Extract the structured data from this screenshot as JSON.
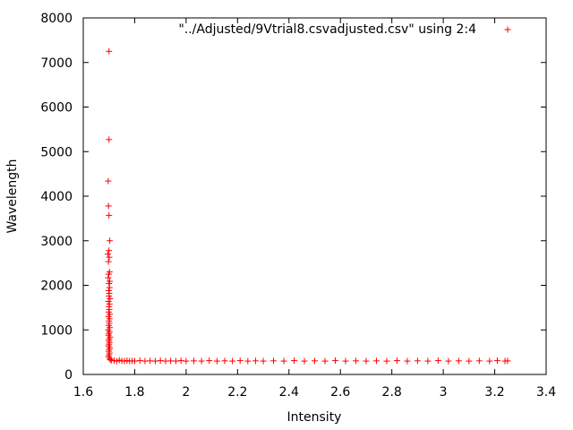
{
  "chart_data": {
    "type": "scatter",
    "xlabel": "Intensity",
    "ylabel": "Wavelength",
    "xlim": [
      1.6,
      3.4
    ],
    "ylim": [
      0,
      8000
    ],
    "x_ticks": [
      "1.6",
      "1.8",
      "2",
      "2.2",
      "2.4",
      "2.6",
      "2.8",
      "3",
      "3.2",
      "3.4"
    ],
    "y_ticks": [
      "0",
      "1000",
      "2000",
      "3000",
      "4000",
      "5000",
      "6000",
      "7000",
      "8000"
    ],
    "grid": false,
    "legend": "top-right",
    "marker": "plus",
    "series": [
      {
        "name": "\"../Adjusted/9Vtrial8.csvadjusted.csv\" using 2:4",
        "color": "#ff0000",
        "points": [
          [
            1.7,
            7250
          ],
          [
            1.7,
            5270
          ],
          [
            1.697,
            4340
          ],
          [
            1.698,
            3780
          ],
          [
            1.7,
            3570
          ],
          [
            1.703,
            3000
          ],
          [
            1.7,
            2780
          ],
          [
            1.696,
            2700
          ],
          [
            1.701,
            2630
          ],
          [
            1.698,
            2530
          ],
          [
            1.702,
            2300
          ],
          [
            1.699,
            2250
          ],
          [
            1.697,
            2170
          ],
          [
            1.703,
            2090
          ],
          [
            1.7,
            2040
          ],
          [
            1.702,
            1950
          ],
          [
            1.699,
            1880
          ],
          [
            1.701,
            1820
          ],
          [
            1.7,
            1760
          ],
          [
            1.704,
            1700
          ],
          [
            1.698,
            1640
          ],
          [
            1.702,
            1580
          ],
          [
            1.7,
            1520
          ],
          [
            1.701,
            1460
          ],
          [
            1.699,
            1400
          ],
          [
            1.703,
            1350
          ],
          [
            1.698,
            1300
          ],
          [
            1.702,
            1250
          ],
          [
            1.7,
            1200
          ],
          [
            1.701,
            1150
          ],
          [
            1.699,
            1100
          ],
          [
            1.703,
            1050
          ],
          [
            1.697,
            1000
          ],
          [
            1.702,
            960
          ],
          [
            1.7,
            920
          ],
          [
            1.698,
            880
          ],
          [
            1.704,
            840
          ],
          [
            1.701,
            800
          ],
          [
            1.699,
            760
          ],
          [
            1.702,
            720
          ],
          [
            1.7,
            680
          ],
          [
            1.698,
            640
          ],
          [
            1.703,
            600
          ],
          [
            1.701,
            560
          ],
          [
            1.699,
            520
          ],
          [
            1.702,
            480
          ],
          [
            1.7,
            440
          ],
          [
            1.698,
            400
          ],
          [
            1.703,
            360
          ],
          [
            1.705,
            330
          ],
          [
            1.71,
            320
          ],
          [
            1.72,
            310
          ],
          [
            1.73,
            300
          ],
          [
            1.74,
            320
          ],
          [
            1.75,
            305
          ],
          [
            1.76,
            300
          ],
          [
            1.77,
            310
          ],
          [
            1.78,
            300
          ],
          [
            1.79,
            305
          ],
          [
            1.8,
            300
          ],
          [
            1.82,
            310
          ],
          [
            1.84,
            300
          ],
          [
            1.86,
            305
          ],
          [
            1.88,
            300
          ],
          [
            1.9,
            310
          ],
          [
            1.92,
            300
          ],
          [
            1.94,
            305
          ],
          [
            1.96,
            300
          ],
          [
            1.98,
            310
          ],
          [
            2.0,
            300
          ],
          [
            2.03,
            305
          ],
          [
            2.06,
            300
          ],
          [
            2.09,
            310
          ],
          [
            2.12,
            300
          ],
          [
            2.15,
            305
          ],
          [
            2.18,
            300
          ],
          [
            2.21,
            310
          ],
          [
            2.24,
            300
          ],
          [
            2.27,
            305
          ],
          [
            2.3,
            300
          ],
          [
            2.34,
            305
          ],
          [
            2.38,
            300
          ],
          [
            2.42,
            310
          ],
          [
            2.46,
            300
          ],
          [
            2.5,
            305
          ],
          [
            2.54,
            300
          ],
          [
            2.58,
            310
          ],
          [
            2.62,
            300
          ],
          [
            2.66,
            305
          ],
          [
            2.7,
            300
          ],
          [
            2.74,
            305
          ],
          [
            2.78,
            300
          ],
          [
            2.82,
            310
          ],
          [
            2.86,
            300
          ],
          [
            2.9,
            305
          ],
          [
            2.94,
            300
          ],
          [
            2.98,
            310
          ],
          [
            3.02,
            300
          ],
          [
            3.06,
            305
          ],
          [
            3.1,
            300
          ],
          [
            3.14,
            305
          ],
          [
            3.18,
            300
          ],
          [
            3.21,
            310
          ],
          [
            3.24,
            300
          ],
          [
            3.25,
            305
          ]
        ]
      }
    ]
  }
}
